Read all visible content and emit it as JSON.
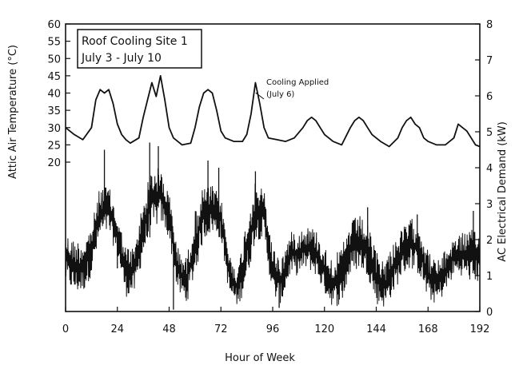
{
  "chart_data": {
    "type": "line",
    "title": "",
    "legend_box": {
      "line1": "Roof Cooling Site 1",
      "line2": "July 3 - July 10",
      "placement": "top-left"
    },
    "xlabel": "Hour of Week",
    "ylabel_left": "Attic Air Temperature (°C)",
    "ylabel_right": "AC Electrical Demand (kW)",
    "xlim": [
      0,
      192
    ],
    "x_ticks": [
      0,
      24,
      48,
      72,
      96,
      120,
      144,
      168,
      192
    ],
    "ylim_left": [
      20,
      60
    ],
    "y_ticks_left": [
      20,
      25,
      30,
      35,
      40,
      45,
      50,
      55,
      60
    ],
    "ylim_right": [
      0,
      8
    ],
    "y_ticks_right": [
      0,
      1,
      2,
      3,
      4,
      5,
      6,
      7,
      8
    ],
    "grid": false,
    "annotation": {
      "line1": "Cooling Applied",
      "line2": "(July 6)",
      "x": 87,
      "y": 41
    },
    "series": [
      {
        "axis": "left",
        "style": "smooth-line",
        "x": [
          0,
          4,
          8,
          12,
          14,
          16,
          18,
          20,
          22,
          24,
          26,
          28,
          30,
          34,
          36,
          38,
          40,
          42,
          44,
          46,
          48,
          50,
          54,
          58,
          60,
          62,
          64,
          66,
          68,
          70,
          72,
          74,
          78,
          82,
          84,
          86,
          88,
          90,
          92,
          94,
          98,
          102,
          106,
          110,
          112,
          114,
          116,
          118,
          120,
          124,
          128,
          132,
          134,
          136,
          138,
          140,
          142,
          146,
          150,
          154,
          156,
          158,
          160,
          162,
          164,
          166,
          168,
          172,
          176,
          180,
          182,
          184,
          186,
          188,
          190,
          192
        ],
        "values": [
          30,
          28,
          26.5,
          30,
          38,
          41,
          40,
          41,
          37,
          31,
          28,
          26.5,
          25.5,
          27,
          33,
          38,
          43,
          39,
          45,
          38,
          30,
          27,
          25,
          25.5,
          30,
          36,
          40,
          41,
          40,
          35,
          29,
          27,
          26,
          26,
          28,
          34,
          43,
          37,
          30,
          27,
          26.5,
          26,
          27,
          30,
          32,
          33,
          32,
          30,
          28,
          26,
          25,
          30,
          32,
          33,
          32,
          30,
          28,
          26,
          24.5,
          27,
          30,
          32,
          33,
          31,
          30,
          27,
          26,
          25,
          25,
          27,
          31,
          30,
          29,
          27,
          25,
          24.5
        ]
      },
      {
        "axis": "right",
        "style": "noisy-envelope",
        "x": [
          0,
          4,
          8,
          12,
          16,
          20,
          24,
          28,
          32,
          36,
          40,
          44,
          48,
          52,
          56,
          60,
          64,
          68,
          72,
          76,
          80,
          84,
          88,
          92,
          96,
          100,
          104,
          108,
          112,
          116,
          120,
          124,
          128,
          132,
          136,
          140,
          144,
          148,
          152,
          156,
          160,
          164,
          168,
          172,
          176,
          180,
          184,
          188,
          192
        ],
        "low": [
          0.8,
          0.5,
          0.5,
          1,
          2,
          2.2,
          1.5,
          0.4,
          0.5,
          1.5,
          2.2,
          2.5,
          2,
          0.5,
          0.2,
          1,
          2,
          2.2,
          2,
          0.4,
          0.1,
          0.8,
          2,
          2,
          0.4,
          0.2,
          1,
          1,
          1.2,
          1,
          0.5,
          0.1,
          0.2,
          1,
          1.2,
          1,
          0.2,
          0.1,
          0.5,
          1,
          1.2,
          1,
          0.3,
          0.2,
          0.5,
          1,
          1,
          0.8,
          0.8
        ],
        "high": [
          2.2,
          2,
          2,
          2.4,
          3.5,
          3.5,
          2.7,
          1.8,
          1.8,
          3.2,
          4,
          4,
          3.3,
          1.8,
          1.5,
          2.8,
          3.5,
          3.5,
          3.2,
          1.6,
          1.2,
          2.7,
          3.6,
          3.4,
          1.8,
          1.5,
          2.2,
          2.3,
          2.4,
          2.3,
          1.8,
          1.5,
          1.8,
          2.5,
          2.7,
          2.4,
          1.7,
          1.4,
          2,
          2.3,
          2.6,
          2.5,
          1.7,
          1.4,
          1.7,
          2.1,
          2.2,
          2.3,
          2.2
        ],
        "spikes": [
          {
            "x": 18,
            "value": 4.5
          },
          {
            "x": 24,
            "value": 1.2
          },
          {
            "x": 39,
            "value": 4.7
          },
          {
            "x": 43,
            "value": 4.6
          },
          {
            "x": 50,
            "value": 0.05
          },
          {
            "x": 66,
            "value": 4.2
          },
          {
            "x": 71,
            "value": 4.0
          },
          {
            "x": 88,
            "value": 3.9
          },
          {
            "x": 99,
            "value": 0.1
          },
          {
            "x": 140,
            "value": 2.9
          },
          {
            "x": 163,
            "value": 2.7
          },
          {
            "x": 189,
            "value": 2.8
          }
        ]
      }
    ]
  }
}
